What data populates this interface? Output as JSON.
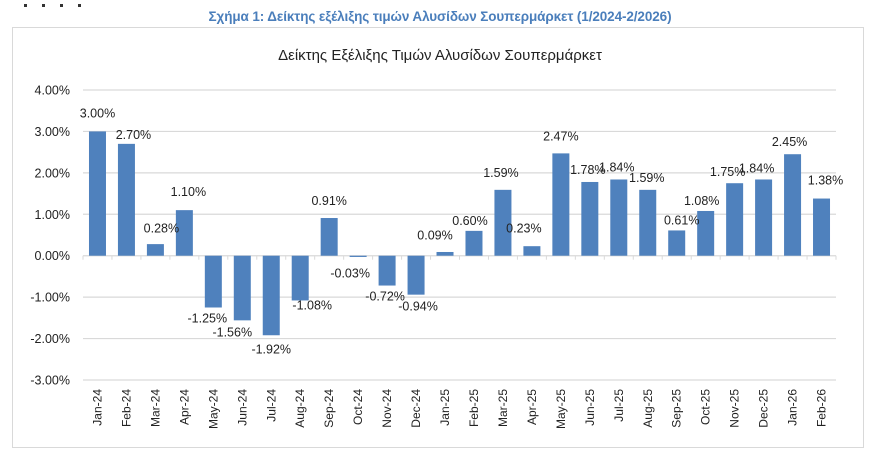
{
  "caption": "Σχήμα 1: Δείκτης εξέλιξης τιμών Αλυσίδων Σουπερμάρκετ (1/2024-2/2026)",
  "chart_data": {
    "type": "bar",
    "title": "Δείκτης Εξέλιξης Τιμών Αλυσίδων Σουπερμάρκετ",
    "xlabel": "",
    "ylabel": "",
    "ylim": [
      -3.0,
      4.0
    ],
    "yticks": [
      "4.00%",
      "3.00%",
      "2.00%",
      "1.00%",
      "0.00%",
      "-1.00%",
      "-2.00%",
      "-3.00%"
    ],
    "grid": true,
    "legend": null,
    "bar_color": "#4f81bd",
    "categories": [
      "Jan-24",
      "Feb-24",
      "Mar-24",
      "Apr-24",
      "May-24",
      "Jun-24",
      "Jul-24",
      "Aug-24",
      "Sep-24",
      "Oct-24",
      "Nov-24",
      "Dec-24",
      "Jan-25",
      "Feb-25",
      "Mar-25",
      "Apr-25",
      "May-25",
      "Jun-25",
      "Jul-25",
      "Aug-25",
      "Sep-25",
      "Oct-25",
      "Nov-25",
      "Dec-25",
      "Jan-26",
      "Feb-26"
    ],
    "values": [
      3.0,
      2.7,
      0.28,
      1.1,
      -1.25,
      -1.56,
      -1.92,
      -1.08,
      0.91,
      -0.03,
      -0.72,
      -0.94,
      0.09,
      0.6,
      1.59,
      0.23,
      2.47,
      1.78,
      1.84,
      1.59,
      0.61,
      1.08,
      1.75,
      1.84,
      2.45,
      1.38
    ],
    "data_labels": [
      "3.00%",
      "2.70%",
      "0.28%",
      "1.10%",
      "-1.25%",
      "-1.56%",
      "-1.92%",
      "-1.08%",
      "0.91%",
      "-0.03%",
      "-0.72%",
      "-0.94%",
      "0.09%",
      "0.60%",
      "1.59%",
      "0.23%",
      "2.47%",
      "1.78%",
      "1.84%",
      "1.59%",
      "0.61%",
      "1.08%",
      "1.75%",
      "1.84%",
      "2.45%",
      "1.38%"
    ]
  }
}
